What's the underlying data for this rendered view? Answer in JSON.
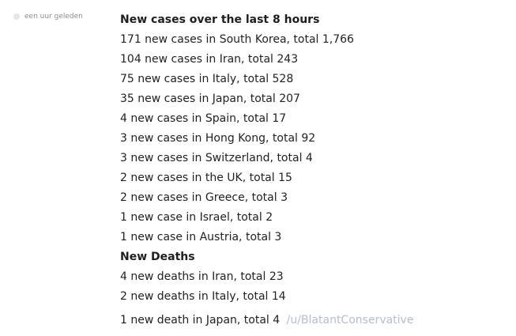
{
  "timestamp": "een uur geleden",
  "sections": {
    "cases_heading": "New cases over the last 8 hours",
    "cases": [
      "171 new cases in South Korea, total 1,766",
      "104 new cases in Iran, total 243",
      "75 new cases in Italy, total 528",
      "35 new cases in Japan, total 207",
      "4 new cases in Spain, total 17",
      "3 new cases in Hong Kong, total 92",
      "3 new cases in Switzerland, total 4",
      "2 new cases in the UK, total 15",
      "2 new cases in Greece, total 3",
      "1 new case in Israel, total 2",
      "1 new case in Austria, total 3"
    ],
    "deaths_heading": "New Deaths",
    "deaths": [
      "4 new deaths in Iran, total 23",
      "2 new deaths in Italy, total 14",
      "1 new death in Japan, total 4"
    ]
  },
  "author_link": "/u/BlatantConservative",
  "colors": {
    "text": "#222222",
    "muted": "#8d8d8d",
    "link": "#b5bfcc"
  }
}
